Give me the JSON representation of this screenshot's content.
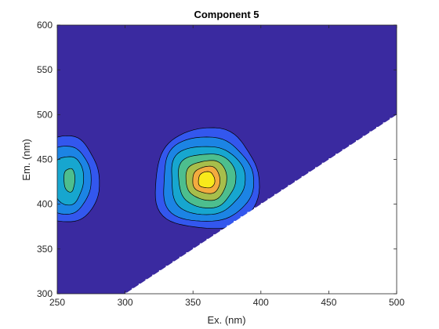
{
  "chart_data": {
    "type": "contour",
    "title": "Component 5",
    "xlabel": "Ex. (nm)",
    "ylabel": "Em. (nm)",
    "xlim": [
      250,
      500
    ],
    "ylim": [
      300,
      600
    ],
    "xticks": [
      250,
      300,
      350,
      400,
      450,
      500
    ],
    "yticks": [
      300,
      350,
      400,
      450,
      500,
      550,
      600
    ],
    "grid": false,
    "background_color": "#3a2aa0",
    "masked_region": {
      "description": "no data where Em < Ex (Rayleigh scatter region)",
      "boundary": [
        [
          300,
          300
        ],
        [
          500,
          500
        ]
      ]
    },
    "peaks": [
      {
        "ex": 360,
        "em": 427,
        "relative_intensity": 1.0
      },
      {
        "ex": 260,
        "em": 427,
        "relative_intensity": 0.55
      }
    ],
    "contour_levels": [
      {
        "level": 1,
        "color": "#3a2aa0"
      },
      {
        "level": 2,
        "color": "#3357ee"
      },
      {
        "level": 3,
        "color": "#1c84e4"
      },
      {
        "level": 4,
        "color": "#17a6cf"
      },
      {
        "level": 5,
        "color": "#4dbe8e"
      },
      {
        "level": 6,
        "color": "#a7be4b"
      },
      {
        "level": 7,
        "color": "#f3ab3f"
      },
      {
        "level": 8,
        "color": "#f8e91b"
      }
    ],
    "contours": [
      {
        "ex_center": 360,
        "em_center": 427,
        "ex_halfwidth": 38,
        "em_halfwidth": 56,
        "color": "#3357ee"
      },
      {
        "ex_center": 360,
        "em_center": 427,
        "ex_halfwidth": 33,
        "em_halfwidth": 47,
        "color": "#1c84e4"
      },
      {
        "ex_center": 360,
        "em_center": 427,
        "ex_halfwidth": 27,
        "em_halfwidth": 38,
        "color": "#17a6cf"
      },
      {
        "ex_center": 360,
        "em_center": 427,
        "ex_halfwidth": 21,
        "em_halfwidth": 30,
        "color": "#4dbe8e"
      },
      {
        "ex_center": 360,
        "em_center": 427,
        "ex_halfwidth": 15,
        "em_halfwidth": 22,
        "color": "#a7be4b"
      },
      {
        "ex_center": 360,
        "em_center": 427,
        "ex_halfwidth": 10,
        "em_halfwidth": 15,
        "color": "#f3ab3f"
      },
      {
        "ex_center": 360,
        "em_center": 427,
        "ex_halfwidth": 6,
        "em_halfwidth": 9,
        "color": "#f8e91b"
      },
      {
        "ex_center": 257,
        "em_center": 427,
        "ex_halfwidth": 23,
        "em_halfwidth": 48,
        "color": "#3357ee"
      },
      {
        "ex_center": 257,
        "em_center": 427,
        "ex_halfwidth": 17,
        "em_halfwidth": 38,
        "color": "#1c84e4"
      },
      {
        "ex_center": 258,
        "em_center": 427,
        "ex_halfwidth": 11,
        "em_halfwidth": 27,
        "color": "#17a6cf"
      },
      {
        "ex_center": 259,
        "em_center": 427,
        "ex_halfwidth": 4,
        "em_halfwidth": 13,
        "color": "#4dbe8e"
      }
    ]
  }
}
